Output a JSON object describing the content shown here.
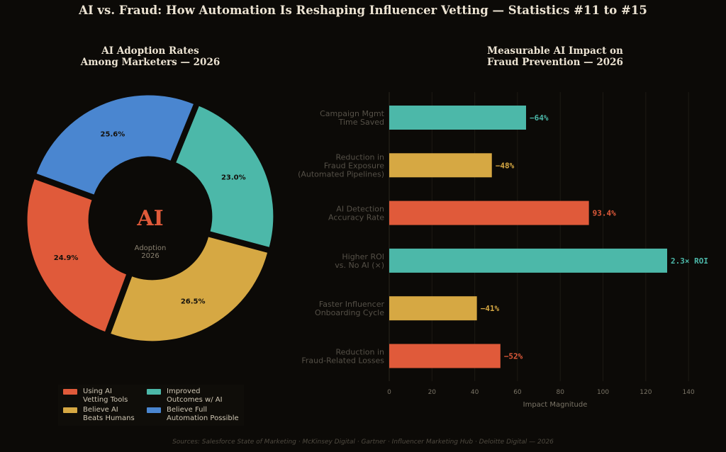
{
  "page": {
    "title": "AI vs. Fraud: How Automation Is Reshaping Influencer Vetting — Statistics #11 to #15",
    "source": "Sources: Salesforce State of Marketing · McKinsey Digital · Gartner · Influencer Marketing Hub · Deloitte Digital — 2026"
  },
  "colors": {
    "background": "#0c0a07",
    "red": "#e05a3a",
    "gold": "#d6a843",
    "teal": "#4cb8a9",
    "blue": "#4a86d0",
    "axis_text": "#7a7466",
    "category_text": "#555047"
  },
  "chart_data": [
    {
      "type": "pie",
      "title_lines": [
        "AI Adoption Rates",
        "Among Marketers — 2026"
      ],
      "center_label": "AI",
      "center_sublabel_lines": [
        "Adoption",
        "2026"
      ],
      "slices": [
        {
          "name_lines": [
            "Using AI",
            "Vetting Tools"
          ],
          "value": 24.9,
          "label": "24.9%",
          "color": "#e05a3a"
        },
        {
          "name_lines": [
            "Believe AI",
            "Beats Humans"
          ],
          "value": 26.5,
          "label": "26.5%",
          "color": "#d6a843"
        },
        {
          "name_lines": [
            "Improved",
            "Outcomes w/ AI"
          ],
          "value": 23.0,
          "label": "23.0%",
          "color": "#4cb8a9"
        },
        {
          "name_lines": [
            "Believe Full",
            "Automation Possible"
          ],
          "value": 25.6,
          "label": "25.6%",
          "color": "#4a86d0"
        }
      ],
      "legend_placement": "bottom"
    },
    {
      "type": "bar",
      "orientation": "horizontal",
      "title_lines": [
        "Measurable AI Impact on",
        "Fraud Prevention — 2026"
      ],
      "xlabel": "Impact Magnitude",
      "xlim": [
        0,
        145
      ],
      "xticks": [
        0,
        20,
        40,
        60,
        80,
        100,
        120,
        140
      ],
      "grid": true,
      "bars": [
        {
          "label_lines": [
            "Campaign Mgmt",
            "Time Saved"
          ],
          "value": 64,
          "value_label": "−64%",
          "color": "#4cb8a9"
        },
        {
          "label_lines": [
            "Reduction in",
            "Fraud Exposure",
            "(Automated Pipelines)"
          ],
          "value": 48,
          "value_label": "−48%",
          "color": "#d6a843"
        },
        {
          "label_lines": [
            "AI Detection",
            "Accuracy Rate"
          ],
          "value": 93.4,
          "value_label": "93.4%",
          "color": "#e05a3a"
        },
        {
          "label_lines": [
            "Higher ROI",
            "vs. No AI (×)"
          ],
          "value": 130,
          "value_label": "2.3× ROI",
          "color": "#4cb8a9"
        },
        {
          "label_lines": [
            "Faster Influencer",
            "Onboarding Cycle"
          ],
          "value": 41,
          "value_label": "−41%",
          "color": "#d6a843"
        },
        {
          "label_lines": [
            "Reduction in",
            "Fraud-Related Losses"
          ],
          "value": 52,
          "value_label": "−52%",
          "color": "#e05a3a"
        }
      ]
    }
  ]
}
